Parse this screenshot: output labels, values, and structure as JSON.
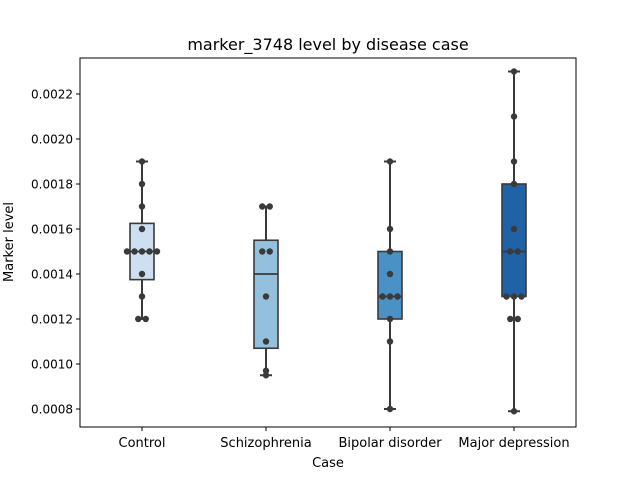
{
  "chart_data": {
    "type": "box",
    "title": "marker_3748 level by disease case",
    "xlabel": "Case",
    "ylabel": "Marker level",
    "ylim": [
      0.00072,
      0.00236
    ],
    "yticks": [
      "0.0008",
      "0.0010",
      "0.0012",
      "0.0014",
      "0.0016",
      "0.0018",
      "0.0020",
      "0.0022"
    ],
    "ytick_values": [
      0.0008,
      0.001,
      0.0012,
      0.0014,
      0.0016,
      0.0018,
      0.002,
      0.0022
    ],
    "grid": false,
    "categories": [
      "Control",
      "Schizophrenia",
      "Bipolar disorder",
      "Major depression"
    ],
    "colors": [
      "#cddff0",
      "#93c0dc",
      "#4a91c5",
      "#1f62a6"
    ],
    "point_color": "#3a3a3a",
    "boxes": [
      {
        "whislo": 0.0012,
        "q1": 0.001375,
        "med": 0.0015,
        "q3": 0.001625,
        "whishi": 0.0019
      },
      {
        "whislo": 0.00095,
        "q1": 0.00107,
        "med": 0.0014,
        "q3": 0.00155,
        "whishi": 0.0017
      },
      {
        "whislo": 0.0008,
        "q1": 0.0012,
        "med": 0.0013,
        "q3": 0.0015,
        "whishi": 0.0019
      },
      {
        "whislo": 0.00079,
        "q1": 0.0013,
        "med": 0.0015,
        "q3": 0.0018,
        "whishi": 0.0023
      }
    ],
    "points": [
      [
        0.0019,
        0.0018,
        0.0017,
        0.0016,
        0.0015,
        0.0015,
        0.0015,
        0.0015,
        0.0015,
        0.0014,
        0.0013,
        0.0012,
        0.0012
      ],
      [
        0.0017,
        0.0017,
        0.0015,
        0.0015,
        0.0013,
        0.0011,
        0.00097,
        0.00095
      ],
      [
        0.0019,
        0.0016,
        0.0015,
        0.0014,
        0.0013,
        0.0013,
        0.0013,
        0.0012,
        0.0011,
        0.0008
      ],
      [
        0.0023,
        0.0021,
        0.0019,
        0.0018,
        0.0016,
        0.0015,
        0.0015,
        0.0013,
        0.0013,
        0.0013,
        0.0012,
        0.0012,
        0.00079
      ]
    ]
  }
}
